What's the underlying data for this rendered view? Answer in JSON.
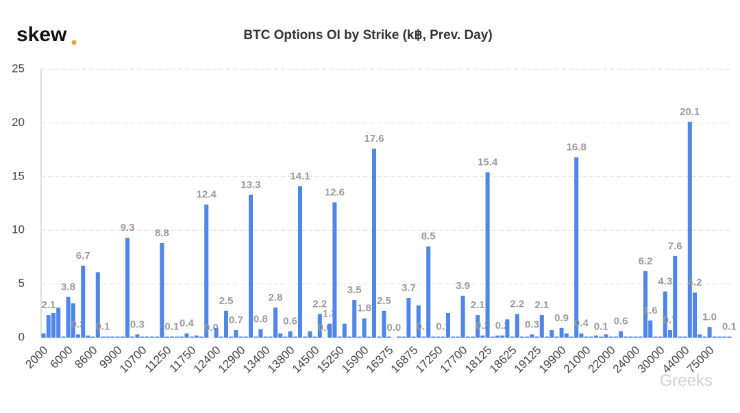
{
  "logo": "skew",
  "watermark": "Greeks",
  "chart_data": {
    "type": "bar",
    "title": "BTC Options OI by Strike (k฿, Prev. Day)",
    "color": "#4f86e8",
    "ylim": [
      0,
      25
    ],
    "yticks": [
      0,
      5,
      10,
      15,
      20,
      25
    ],
    "grid": true,
    "categories": [
      "2000",
      null,
      null,
      null,
      null,
      "6000",
      null,
      null,
      null,
      null,
      "8600",
      null,
      null,
      null,
      null,
      "9900",
      null,
      null,
      null,
      null,
      "10700",
      null,
      null,
      null,
      null,
      "11250",
      null,
      null,
      null,
      null,
      "11750",
      null,
      null,
      null,
      null,
      "12400",
      null,
      null,
      null,
      null,
      "12900",
      null,
      null,
      null,
      null,
      "13400",
      null,
      null,
      null,
      null,
      "13800",
      null,
      null,
      null,
      null,
      "14500",
      null,
      null,
      null,
      null,
      "15250",
      null,
      null,
      null,
      null,
      "15900",
      null,
      null,
      null,
      null,
      "16375",
      null,
      null,
      null,
      null,
      "16875",
      null,
      null,
      null,
      null,
      "17250",
      null,
      null,
      null,
      null,
      "17700",
      null,
      null,
      null,
      null,
      "18125",
      null,
      null,
      null,
      null,
      "18625",
      null,
      null,
      null,
      null,
      "19125",
      null,
      null,
      null,
      null,
      "19900",
      null,
      null,
      null,
      null,
      "21000",
      null,
      null,
      null,
      null,
      "22000",
      null,
      null,
      null,
      null,
      "24000",
      null,
      null,
      null,
      null,
      "30000",
      null,
      null,
      null,
      null,
      "44000",
      null,
      null,
      null,
      null,
      "75000",
      null,
      null,
      null,
      null
    ],
    "values": [
      0.4,
      2.1,
      2.3,
      2.8,
      0.1,
      3.8,
      3.2,
      0.3,
      6.7,
      0.2,
      0.1,
      6.1,
      0.1,
      0.1,
      0.1,
      0.1,
      0.1,
      9.3,
      0.1,
      0.3,
      0.1,
      0.1,
      0.1,
      0.1,
      8.8,
      0.1,
      0.1,
      0.1,
      0.1,
      0.4,
      0.1,
      0.2,
      0.1,
      12.4,
      0,
      0.9,
      0.1,
      2.5,
      0.1,
      0.7,
      0.1,
      0.1,
      13.3,
      0.1,
      0.8,
      0.1,
      0.1,
      2.8,
      0.4,
      0.1,
      0.6,
      0.1,
      14.1,
      0.1,
      0.6,
      0.1,
      2.2,
      0,
      1.3,
      12.6,
      0.1,
      1.3,
      0.1,
      3.5,
      0.1,
      1.8,
      0.1,
      17.6,
      0.1,
      2.5,
      0.1,
      0,
      0.1,
      0.1,
      3.7,
      0.1,
      3.0,
      0.1,
      8.5,
      0.1,
      0.1,
      0.1,
      2.3,
      0.1,
      0.1,
      3.9,
      0.1,
      0.1,
      2.1,
      0.2,
      15.4,
      0.1,
      0.2,
      0.2,
      1.7,
      0.1,
      2.2,
      0.1,
      0.1,
      0.3,
      0.1,
      2.1,
      0.1,
      0.7,
      0.1,
      0.9,
      0.4,
      0.1,
      16.8,
      0.4,
      0.1,
      0.1,
      0.2,
      0.1,
      0.3,
      0.1,
      0.1,
      0.6,
      0.1,
      0.1,
      0.1,
      0.1,
      6.2,
      1.6,
      0.1,
      0.1,
      4.3,
      0.7,
      7.6,
      0.1,
      0.1,
      20.1,
      4.2,
      0.3,
      0.1,
      1.0,
      0.1,
      0.1,
      0.1,
      0.1
    ],
    "value_labels": [
      null,
      "2.1",
      null,
      null,
      null,
      "3.8",
      null,
      "0.3",
      "6.7",
      null,
      null,
      null,
      "0.1",
      null,
      null,
      null,
      null,
      "9.3",
      null,
      "0.3",
      null,
      null,
      null,
      null,
      "8.8",
      null,
      "0.1",
      null,
      null,
      "0.4",
      null,
      null,
      null,
      "12.4",
      "0.0",
      null,
      null,
      "2.5",
      null,
      "0.7",
      null,
      null,
      "13.3",
      null,
      "0.8",
      null,
      null,
      "2.8",
      null,
      null,
      "0.6",
      null,
      "14.1",
      null,
      null,
      null,
      "2.2",
      "0.0",
      "1.3",
      "12.6",
      null,
      null,
      null,
      "3.5",
      null,
      "1.8",
      null,
      "17.6",
      null,
      "2.5",
      null,
      "0.0",
      null,
      null,
      "3.7",
      null,
      null,
      "0.1",
      "8.5",
      null,
      null,
      "0.1",
      null,
      null,
      null,
      "3.9",
      null,
      null,
      "2.1",
      "0.2",
      "15.4",
      null,
      null,
      "0.2",
      null,
      null,
      "2.2",
      null,
      null,
      "0.3",
      null,
      "2.1",
      null,
      null,
      null,
      "0.9",
      null,
      null,
      "16.8",
      "0.4",
      null,
      null,
      null,
      "0.1",
      null,
      null,
      null,
      "0.6",
      null,
      null,
      null,
      null,
      "6.2",
      "1.6",
      null,
      null,
      "4.3",
      "0.7",
      "7.6",
      null,
      null,
      "20.1",
      "4.2",
      null,
      null,
      "1.0",
      null,
      null,
      null,
      "0.1"
    ]
  }
}
